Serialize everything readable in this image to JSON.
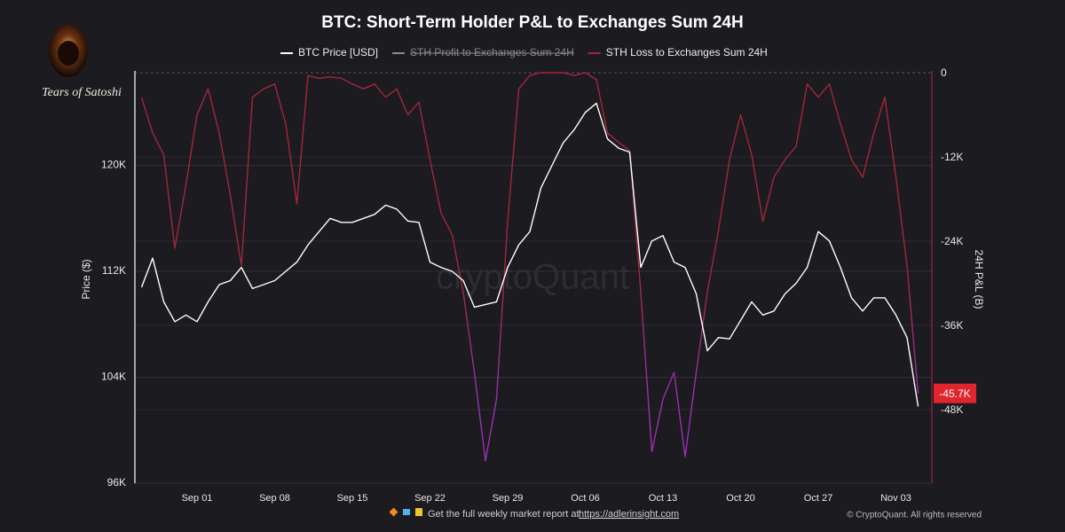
{
  "chart_data": {
    "type": "line",
    "title": "BTC: Short-Term Holder P&L to Exchanges Sum 24H",
    "brand": "Tears of Satoshi",
    "watermark": "cryptoQuant",
    "ylabel": "Price ($)",
    "y2label": "24H P&L (B)",
    "footer_text": "Get the full weekly market report at",
    "footer_link": "https://adlerinsight.com",
    "copyright": "© CryptoQuant. All rights reserved",
    "categories": [
      null,
      null,
      null,
      null,
      null,
      "Sep 01",
      null,
      null,
      null,
      null,
      null,
      null,
      "Sep 08",
      null,
      null,
      null,
      null,
      null,
      null,
      "Sep 15",
      null,
      null,
      null,
      null,
      null,
      null,
      "Sep 22",
      null,
      null,
      null,
      null,
      null,
      null,
      "Sep 29",
      null,
      null,
      null,
      null,
      null,
      null,
      "Oct 06",
      null,
      null,
      null,
      null,
      null,
      null,
      "Oct 13",
      null,
      null,
      null,
      null,
      null,
      null,
      "Oct 20",
      null,
      null,
      null,
      null,
      null,
      null,
      "Oct 27",
      null,
      null,
      null,
      null,
      null,
      null,
      "Nov 03",
      null,
      null
    ],
    "ylim": [
      96000,
      127000
    ],
    "yticks": [
      {
        "value": 96000,
        "label": "96K"
      },
      {
        "value": 104000,
        "label": "104K"
      },
      {
        "value": 112000,
        "label": "112K"
      },
      {
        "value": 120000,
        "label": "120K"
      }
    ],
    "y2lim": [
      -58500,
      0
    ],
    "y2ticks": [
      0,
      {
        "value": -12000,
        "label": "-12K"
      },
      {
        "value": -24000,
        "label": "-24K"
      },
      {
        "value": -36000,
        "label": "-36K"
      },
      {
        "value": -48000,
        "label": "-48K"
      }
    ],
    "grid": true,
    "legend": "top",
    "series": [
      {
        "name": "BTC Price [USD]",
        "color": "#ffffff",
        "axis": "y",
        "visible": true,
        "values": [
          110800,
          113000,
          109700,
          108200,
          108700,
          108200,
          109700,
          111000,
          111300,
          112300,
          110700,
          111000,
          111300,
          112000,
          112700,
          114000,
          115000,
          116000,
          115700,
          115700,
          116000,
          116300,
          117000,
          116700,
          115800,
          115700,
          112700,
          112300,
          112000,
          111300,
          109300,
          109500,
          109700,
          112300,
          114000,
          115000,
          118300,
          120000,
          121700,
          122700,
          124000,
          124700,
          122000,
          121300,
          121000,
          112300,
          114300,
          114700,
          112700,
          112300,
          110300,
          106000,
          107000,
          106900,
          108300,
          109700,
          108700,
          109000,
          110300,
          111100,
          112300,
          115000,
          114300,
          112300,
          110000,
          109000,
          110000,
          110000,
          108700,
          107000,
          101800
        ]
      },
      {
        "name": "STH Profit to Exchanges Sum 24H",
        "color": "#8a8a8a",
        "axis": "y2",
        "visible": false,
        "values": [
          null,
          null,
          null,
          null,
          null,
          null,
          null,
          null,
          null,
          null,
          null,
          null,
          null,
          null,
          null,
          null,
          null,
          null,
          null,
          null,
          null,
          null,
          null,
          null,
          null,
          null,
          null,
          null,
          null,
          null,
          null,
          null,
          null,
          null,
          null,
          null,
          null,
          null,
          null,
          null,
          null,
          null,
          null,
          null,
          null,
          null,
          null,
          null,
          null,
          null,
          null,
          null,
          null,
          null,
          null,
          null,
          null,
          null,
          null,
          null,
          null,
          null,
          null,
          null,
          null,
          null,
          null,
          null,
          null,
          null,
          null
        ]
      },
      {
        "name": "STH Loss to Exchanges Sum 24H",
        "color": "#a3263a",
        "low_color": "#9b2fb5",
        "axis": "y2",
        "visible": true,
        "values": [
          -3500,
          -8600,
          -11700,
          -25000,
          -16000,
          -6000,
          -2300,
          -8600,
          -17400,
          -27500,
          -3500,
          -2300,
          -1600,
          -7300,
          -18700,
          -400,
          -800,
          -600,
          -800,
          -1600,
          -2300,
          -1600,
          -3500,
          -2300,
          -6000,
          -4200,
          -12400,
          -20000,
          -23100,
          -31300,
          -42700,
          -55300,
          -46500,
          -21200,
          -2300,
          -400,
          0,
          0,
          0,
          -400,
          0,
          -1000,
          -8600,
          -9900,
          -11100,
          -31300,
          -54000,
          -46500,
          -42700,
          -54700,
          -42700,
          -31300,
          -22500,
          -12400,
          -6000,
          -11700,
          -21200,
          -14900,
          -12400,
          -10500,
          -1600,
          -3500,
          -1600,
          -7300,
          -12400,
          -14900,
          -8600,
          -3500,
          -14900,
          -27500,
          -45700
        ],
        "value_labels": [
          null,
          null,
          null,
          null,
          null,
          null,
          null,
          null,
          null,
          null,
          null,
          null,
          null,
          null,
          null,
          null,
          null,
          null,
          null,
          null,
          null,
          null,
          null,
          null,
          null,
          null,
          null,
          null,
          null,
          null,
          null,
          null,
          null,
          null,
          null,
          null,
          null,
          null,
          null,
          null,
          null,
          null,
          null,
          null,
          null,
          null,
          null,
          null,
          null,
          null,
          null,
          null,
          null,
          null,
          null,
          null,
          null,
          null,
          null,
          null,
          null,
          null,
          null,
          null,
          null,
          null,
          null,
          null,
          null,
          null,
          "-45.7K"
        ]
      }
    ]
  }
}
